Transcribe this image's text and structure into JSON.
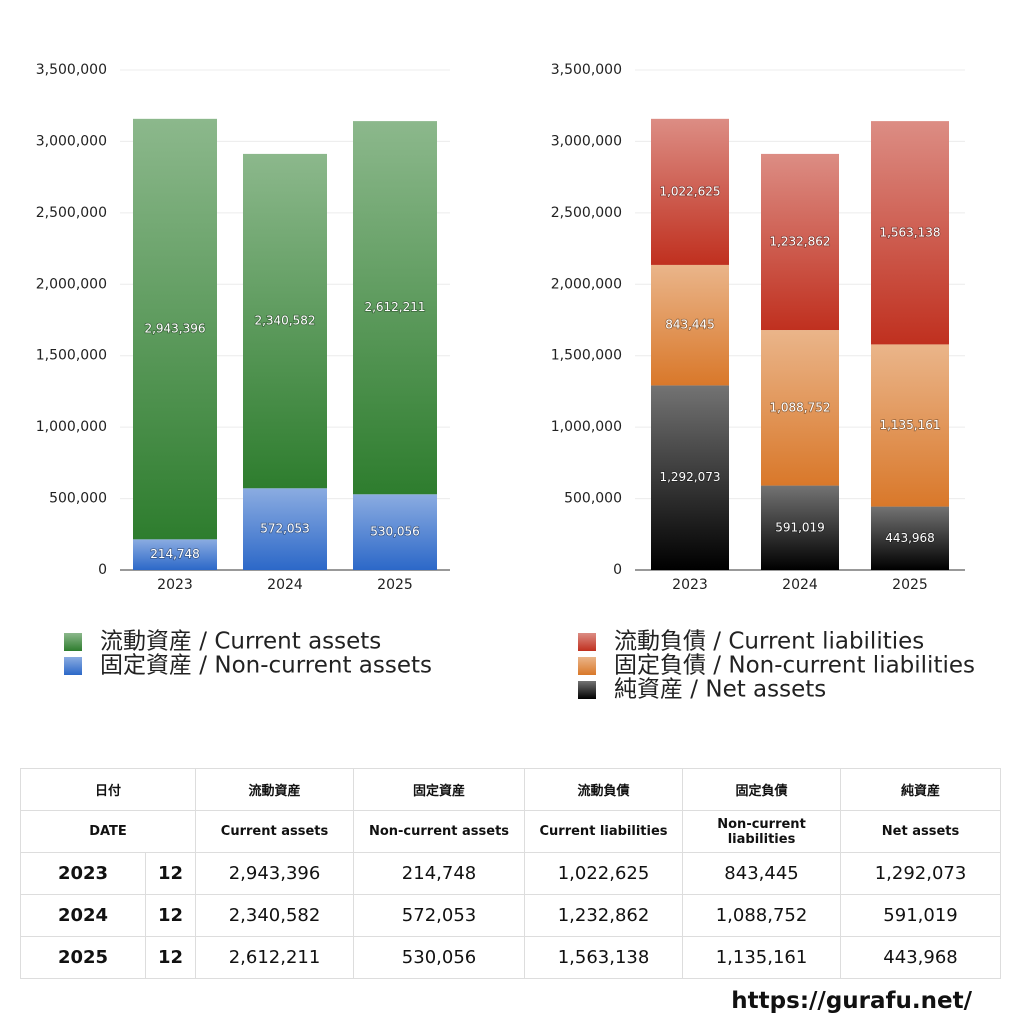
{
  "chart_data": [
    {
      "type": "stacked_bar",
      "categories": [
        "2023",
        "2024",
        "2025"
      ],
      "series": [
        {
          "name": "流動資産 / Current assets",
          "color": "#2e7d2e",
          "values": [
            2943396,
            2340582,
            2612211
          ],
          "value_labels": [
            "2,943,396",
            "2,340,582",
            "2,612,211"
          ]
        },
        {
          "name": "固定資産 / Non-current assets",
          "color": "#2c68c8",
          "values": [
            214748,
            572053,
            530056
          ],
          "value_labels": [
            "214,748",
            "572,053",
            "530,056"
          ]
        }
      ],
      "ylim": [
        0,
        3500000
      ],
      "yticks": [
        0,
        {
          "value": 500000,
          "label": "500,000"
        },
        {
          "value": 1000000,
          "label": "1,000,000"
        },
        {
          "value": 1500000,
          "label": "1,500,000"
        },
        {
          "value": 2000000,
          "label": "2,000,000"
        },
        {
          "value": 2500000,
          "label": "2,500,000"
        },
        {
          "value": 3000000,
          "label": "3,000,000"
        },
        {
          "value": 3500000,
          "label": "3,500,000"
        }
      ],
      "grid": true
    },
    {
      "type": "stacked_bar",
      "categories": [
        "2023",
        "2024",
        "2025"
      ],
      "series": [
        {
          "name": "流動負債 / Current liabilities",
          "color": "#c0301f",
          "values": [
            1022625,
            1232862,
            1563138
          ],
          "value_labels": [
            "1,022,625",
            "1,232,862",
            "1,563,138"
          ]
        },
        {
          "name": "固定負債 / Non-current liabilities",
          "color": "#d9782a",
          "values": [
            843445,
            1088752,
            1135161
          ],
          "value_labels": [
            "843,445",
            "1,088,752",
            "1,135,161"
          ]
        },
        {
          "name": "純資産 / Net assets",
          "color": "#000000",
          "values": [
            1292073,
            591019,
            443968
          ],
          "value_labels": [
            "1,292,073",
            "591,019",
            "443,968"
          ]
        }
      ],
      "ylim": [
        0,
        3500000
      ],
      "yticks": [
        0,
        {
          "value": 500000,
          "label": "500,000"
        },
        {
          "value": 1000000,
          "label": "1,000,000"
        },
        {
          "value": 1500000,
          "label": "1,500,000"
        },
        {
          "value": 2000000,
          "label": "2,000,000"
        },
        {
          "value": 2500000,
          "label": "2,500,000"
        },
        {
          "value": 3000000,
          "label": "3,000,000"
        },
        {
          "value": 3500000,
          "label": "3,500,000"
        }
      ],
      "grid": true
    }
  ],
  "table": {
    "header": [
      "日付",
      "流動資産",
      "固定資産",
      "流動負債",
      "固定負債",
      "純資産"
    ],
    "subheader": [
      "DATE",
      "Current assets",
      "Non-current assets",
      "Current liabilities",
      "Non-current liabilities",
      "Net assets"
    ],
    "rows": [
      [
        "2023",
        "12",
        "2,943,396",
        "214,748",
        "1,022,625",
        "843,445",
        "1,292,073"
      ],
      [
        "2024",
        "12",
        "2,340,582",
        "572,053",
        "1,232,862",
        "1,088,752",
        "591,019"
      ],
      [
        "2025",
        "12",
        "2,612,211",
        "530,056",
        "1,563,138",
        "1,135,161",
        "443,968"
      ]
    ]
  },
  "footer": "https://gurafu.net/"
}
